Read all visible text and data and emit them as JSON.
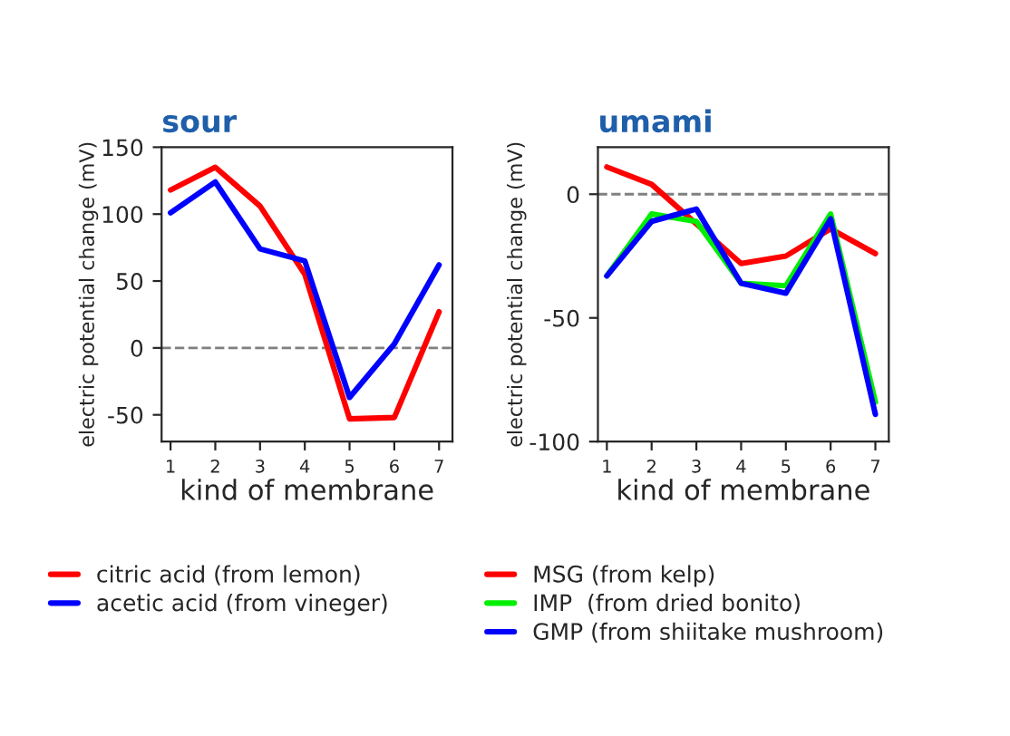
{
  "chart_data": [
    {
      "type": "line",
      "title": "sour",
      "xlabel": "kind of membrane",
      "ylabel": "electric potential change (mV)",
      "x": [
        1,
        2,
        3,
        4,
        5,
        6,
        7
      ],
      "xlim": [
        0.8,
        7.3
      ],
      "xticks": [
        1,
        2,
        3,
        4,
        5,
        6,
        7
      ],
      "ylim": [
        -70,
        150
      ],
      "yticks": [
        -50,
        0,
        50,
        100,
        150
      ],
      "grid": false,
      "legend": "bottom",
      "marker": "none",
      "line_style": "solid",
      "ref_lines": [
        {
          "axis": "y",
          "value": 0,
          "color": "#808080",
          "line_style": "dashed"
        }
      ],
      "series": [
        {
          "name": "citric acid (from lemon)",
          "color": "#ff0000",
          "values": [
            118,
            135,
            106,
            55,
            -53,
            -52,
            27
          ]
        },
        {
          "name": "acetic acid (from vineger)",
          "color": "#0000ff",
          "values": [
            101,
            124,
            74,
            65,
            -37,
            3,
            62
          ]
        }
      ]
    },
    {
      "type": "line",
      "title": "umami",
      "xlabel": "kind of membrane",
      "ylabel": "electric potential change (mV)",
      "x": [
        1,
        2,
        3,
        4,
        5,
        6,
        7
      ],
      "xlim": [
        0.8,
        7.3
      ],
      "xticks": [
        1,
        2,
        3,
        4,
        5,
        6,
        7
      ],
      "ylim": [
        -100,
        19
      ],
      "yticks": [
        -100,
        -50,
        0
      ],
      "grid": false,
      "legend": "bottom",
      "marker": "none",
      "line_style": "solid",
      "ref_lines": [
        {
          "axis": "y",
          "value": 0,
          "color": "#808080",
          "line_style": "dashed"
        }
      ],
      "series": [
        {
          "name": "MSG (from kelp)",
          "color": "#ff0000",
          "values": [
            11,
            4,
            -12,
            -28,
            -25,
            -14,
            -24
          ]
        },
        {
          "name": "IMP  (from dried bonito)",
          "color": "#00ee00",
          "values": [
            -33,
            -8,
            -11,
            -36,
            -37,
            -8,
            -84
          ]
        },
        {
          "name": "GMP (from shiitake mushroom)",
          "color": "#0000ff",
          "values": [
            -33,
            -11,
            -6,
            -36,
            -40,
            -10,
            -89
          ]
        }
      ]
    }
  ]
}
